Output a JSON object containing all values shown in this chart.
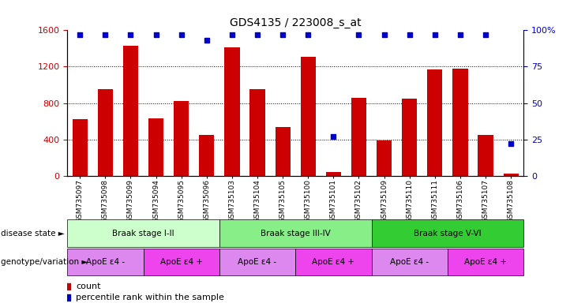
{
  "title": "GDS4135 / 223008_s_at",
  "samples": [
    "GSM735097",
    "GSM735098",
    "GSM735099",
    "GSM735094",
    "GSM735095",
    "GSM735096",
    "GSM735103",
    "GSM735104",
    "GSM735105",
    "GSM735100",
    "GSM735101",
    "GSM735102",
    "GSM735109",
    "GSM735110",
    "GSM735111",
    "GSM735106",
    "GSM735107",
    "GSM735108"
  ],
  "counts": [
    620,
    950,
    1430,
    630,
    820,
    450,
    1410,
    950,
    540,
    1310,
    40,
    860,
    390,
    850,
    1170,
    1180,
    450,
    20
  ],
  "percentiles": [
    97,
    97,
    97,
    97,
    97,
    93,
    97,
    97,
    97,
    97,
    27,
    97,
    97,
    97,
    97,
    97,
    97,
    22
  ],
  "bar_color": "#cc0000",
  "dot_color": "#0000cc",
  "ylim_left": [
    0,
    1600
  ],
  "ylim_right": [
    0,
    100
  ],
  "yticks_left": [
    0,
    400,
    800,
    1200,
    1600
  ],
  "yticks_right": [
    0,
    25,
    50,
    75,
    100
  ],
  "yticklabels_right": [
    "0",
    "25",
    "50",
    "75",
    "100%"
  ],
  "disease_state_groups": [
    {
      "label": "Braak stage I-II",
      "start": 0,
      "end": 6,
      "color": "#ccffcc"
    },
    {
      "label": "Braak stage III-IV",
      "start": 6,
      "end": 12,
      "color": "#88ee88"
    },
    {
      "label": "Braak stage V-VI",
      "start": 12,
      "end": 18,
      "color": "#33cc33"
    }
  ],
  "genotype_groups": [
    {
      "label": "ApoE ε4 -",
      "start": 0,
      "end": 3,
      "color": "#dd88ee"
    },
    {
      "label": "ApoE ε4 +",
      "start": 3,
      "end": 6,
      "color": "#ee44ee"
    },
    {
      "label": "ApoE ε4 -",
      "start": 6,
      "end": 9,
      "color": "#dd88ee"
    },
    {
      "label": "ApoE ε4 +",
      "start": 9,
      "end": 12,
      "color": "#ee44ee"
    },
    {
      "label": "ApoE ε4 -",
      "start": 12,
      "end": 15,
      "color": "#dd88ee"
    },
    {
      "label": "ApoE ε4 +",
      "start": 15,
      "end": 18,
      "color": "#ee44ee"
    }
  ],
  "left_label": "disease state",
  "right_label": "genotype/variation",
  "legend_count_label": "count",
  "legend_pct_label": "percentile rank within the sample",
  "bar_width": 0.6,
  "n_samples": 18
}
